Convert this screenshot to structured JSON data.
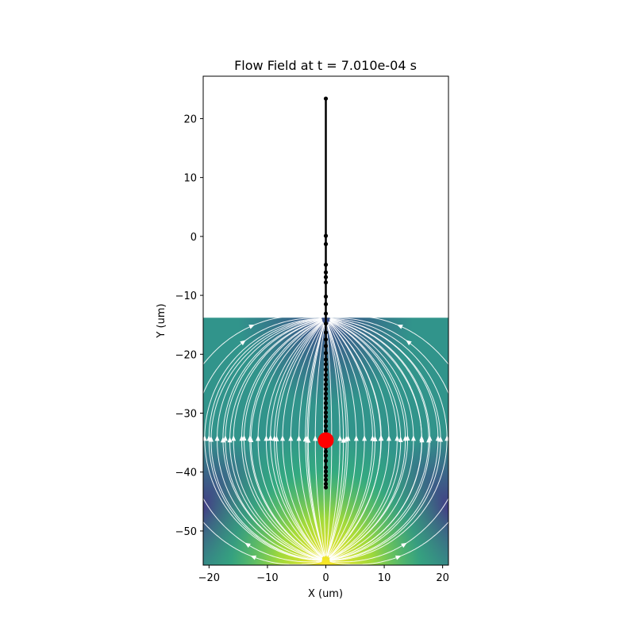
{
  "chart_data": {
    "type": "streamplot",
    "title": "Flow Field at t = 7.010e-04 s",
    "xlabel": "X (um)",
    "ylabel": "Y (um)",
    "xlim": [
      -21,
      21
    ],
    "ylim": [
      -55.8,
      27.2
    ],
    "xticks": [
      -20,
      -10,
      0,
      10,
      20
    ],
    "yticks": [
      20,
      10,
      0,
      -10,
      -20,
      -30,
      -40,
      -50
    ],
    "field": {
      "description_region_y": [
        -55.8,
        -13.8
      ],
      "colormap": "viridis",
      "low_color": "#433e85",
      "high_color": "#fde725",
      "streamline_color": "#ffffff",
      "source_point": [
        0,
        -55
      ],
      "sink_point": [
        0,
        -14
      ]
    },
    "filament": {
      "color": "#000000",
      "x": [
        0,
        0,
        0,
        0,
        0,
        0,
        0,
        0,
        0,
        0,
        0,
        0,
        0,
        0,
        0,
        0,
        0,
        0,
        0,
        0,
        0,
        0,
        0,
        0,
        0,
        0,
        0,
        0,
        0,
        0,
        0,
        0,
        0,
        0,
        0,
        0,
        0,
        0,
        0,
        0,
        0,
        0,
        0,
        0
      ],
      "y": [
        23.4,
        0.1,
        -1.3,
        -4.8,
        -6.1,
        -6.9,
        -7.8,
        -10.2,
        -11.5,
        -13.1,
        -14.8,
        -16.3,
        -17.5,
        -18.6,
        -19.8,
        -20.9,
        -21.7,
        -22.6,
        -23.5,
        -24.3,
        -25.1,
        -25.9,
        -26.7,
        -27.5,
        -28.3,
        -29.1,
        -29.9,
        -30.6,
        -31.4,
        -32.2,
        -33.0,
        -33.7,
        -34.4,
        -35.1,
        -35.8,
        -36.5,
        -37.2,
        -38.1,
        -39.2,
        -39.9,
        -40.6,
        -41.3,
        -42.0,
        -42.6
      ]
    },
    "marker": {
      "x": 0,
      "y": -34.6,
      "color": "#ff0000"
    }
  }
}
